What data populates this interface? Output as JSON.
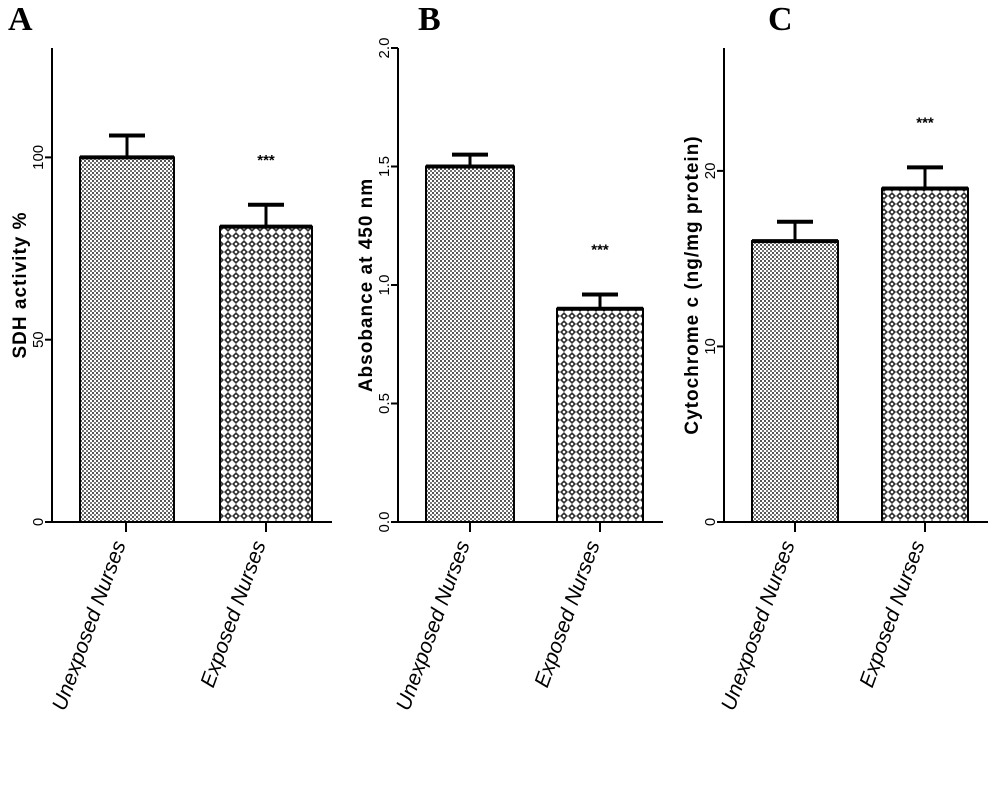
{
  "chart_data": [
    {
      "type": "bar",
      "panel": "A",
      "ylabel": "SDH activity %",
      "ylim": [
        0,
        130
      ],
      "yticks": [
        0,
        50,
        100
      ],
      "categories": [
        "Unexposed Nurses",
        "Exposed Nurses"
      ],
      "values": [
        100,
        81
      ],
      "errors": [
        6,
        6
      ],
      "annotations": [
        "",
        "***"
      ],
      "patterns": [
        "dots",
        "checker"
      ]
    },
    {
      "type": "bar",
      "panel": "B",
      "ylabel": "Absobance at 450 nm",
      "ylim": [
        0,
        2.0
      ],
      "yticks": [
        0.0,
        0.5,
        1.0,
        1.5,
        2.0
      ],
      "ytick_labels": [
        "0.0",
        "0.5",
        "1.0",
        "1.5",
        "2.0"
      ],
      "categories": [
        "Unexposed Nurses",
        "Exposed Nurses"
      ],
      "values": [
        1.5,
        0.9
      ],
      "errors": [
        0.05,
        0.06
      ],
      "annotations": [
        "",
        "***"
      ],
      "patterns": [
        "dots",
        "checker"
      ]
    },
    {
      "type": "bar",
      "panel": "C",
      "ylabel": "Cytochrome c (ng/mg protein)",
      "ylim": [
        0,
        27
      ],
      "yticks": [
        0,
        10,
        20
      ],
      "categories": [
        "Unexposed Nurses",
        "Exposed Nurses"
      ],
      "values": [
        16,
        19
      ],
      "errors": [
        1.1,
        1.2
      ],
      "annotations": [
        "",
        "***"
      ],
      "patterns": [
        "dots",
        "checker"
      ]
    }
  ]
}
